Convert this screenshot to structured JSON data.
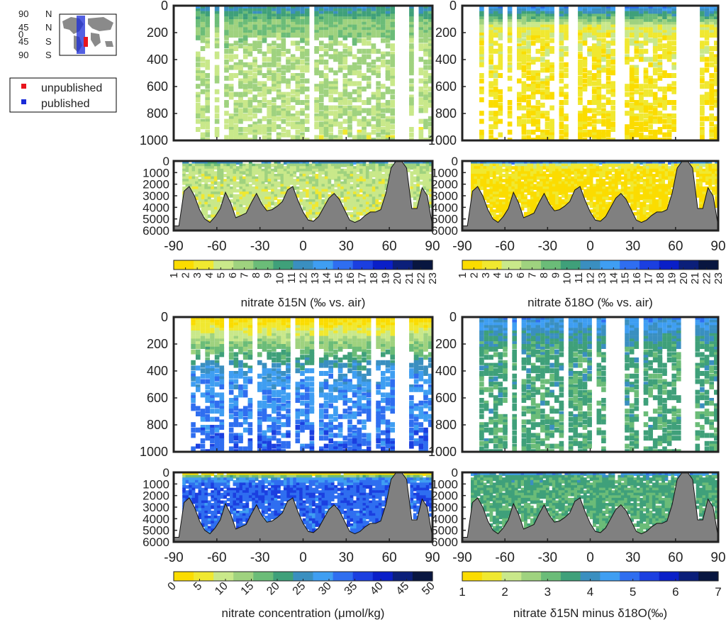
{
  "legend": {
    "items": [
      {
        "label": "unpublished",
        "color": "#e8141c"
      },
      {
        "label": "published",
        "color": "#1a2bd8"
      }
    ]
  },
  "minimap": {
    "lat_labels": [
      "90",
      "45",
      "0",
      "45",
      "90"
    ],
    "hemisphere_labels": [
      "N",
      "N",
      "S",
      "S"
    ]
  },
  "colormap": [
    "#fbdc00",
    "#f0e830",
    "#c9e88a",
    "#9fd27f",
    "#6bbc78",
    "#3fa07a",
    "#3a8fc0",
    "#3f9ef2",
    "#2f6ef0",
    "#1b3fe0",
    "#0a1fc8",
    "#0b1f7a",
    "#081640"
  ],
  "bathymetry": [
    5600,
    5600,
    2600,
    2200,
    3000,
    4200,
    5000,
    5300,
    4800,
    4100,
    2700,
    3600,
    4900,
    4700,
    4500,
    3600,
    2800,
    3700,
    4300,
    4200,
    3900,
    3500,
    2500,
    2200,
    3400,
    4400,
    5100,
    5200,
    4800,
    4000,
    3200,
    2800,
    3300,
    4200,
    5100,
    5300,
    5100,
    4700,
    4400,
    4400,
    4200,
    2800,
    600,
    0,
    0,
    600,
    4100,
    4100,
    2300,
    3000,
    5600
  ],
  "chart_data": [
    {
      "type": "heatmap",
      "id": "a",
      "xlabel": "",
      "cbar_label": "nitrate δ15N (‰ vs. air)",
      "x_ticks": [
        -90,
        -60,
        -30,
        0,
        30,
        60,
        90
      ],
      "xlim": [
        -90,
        90
      ],
      "upper": {
        "ylim": [
          1000,
          0
        ],
        "yticks": [
          0,
          200,
          400,
          600,
          800,
          1000
        ]
      },
      "lower": {
        "ylim": [
          6000,
          0
        ],
        "yticks": [
          0,
          1000,
          2000,
          3000,
          4000,
          5000,
          6000
        ]
      },
      "colorbar": {
        "range": [
          1,
          23
        ],
        "ticks": [
          1,
          2,
          3,
          4,
          5,
          6,
          7,
          8,
          9,
          10,
          11,
          12,
          13,
          14,
          15,
          16,
          17,
          18,
          19,
          20,
          21,
          22,
          23
        ],
        "orientation": "vertical-labels"
      },
      "profile": [
        {
          "depth": 0,
          "value": 12
        },
        {
          "depth": 100,
          "value": 8
        },
        {
          "depth": 300,
          "value": 6.5
        },
        {
          "depth": 1000,
          "value": 5.5
        },
        {
          "depth": 4000,
          "value": 5
        }
      ]
    },
    {
      "type": "heatmap",
      "id": "b",
      "xlabel": "",
      "cbar_label": "nitrate δ18O (‰ vs. air)",
      "x_ticks": [
        -90,
        -60,
        -30,
        0,
        30,
        60,
        90
      ],
      "xlim": [
        -90,
        90
      ],
      "upper": {
        "ylim": [
          1000,
          0
        ],
        "yticks": [
          0,
          200,
          400,
          600,
          800,
          1000
        ]
      },
      "lower": {
        "ylim": [
          6000,
          0
        ],
        "yticks": [
          0,
          1000,
          2000,
          3000,
          4000,
          5000,
          6000
        ]
      },
      "colorbar": {
        "range": [
          1,
          23
        ],
        "ticks": [
          1,
          2,
          3,
          4,
          5,
          6,
          7,
          8,
          9,
          10,
          11,
          12,
          13,
          14,
          15,
          16,
          17,
          18,
          19,
          20,
          21,
          22,
          23
        ],
        "orientation": "vertical-labels"
      },
      "profile": [
        {
          "depth": 0,
          "value": 14
        },
        {
          "depth": 150,
          "value": 4
        },
        {
          "depth": 1000,
          "value": 2.2
        },
        {
          "depth": 4000,
          "value": 2
        }
      ]
    },
    {
      "type": "heatmap",
      "id": "c",
      "xlabel": "",
      "cbar_label": "nitrate concentration (μmol/kg)",
      "x_ticks": [
        -90,
        -60,
        -30,
        0,
        30,
        60,
        90
      ],
      "xlim": [
        -90,
        90
      ],
      "upper": {
        "ylim": [
          1000,
          0
        ],
        "yticks": [
          0,
          200,
          400,
          600,
          800,
          1000
        ]
      },
      "lower": {
        "ylim": [
          6000,
          0
        ],
        "yticks": [
          0,
          1000,
          2000,
          3000,
          4000,
          5000,
          6000
        ]
      },
      "colorbar": {
        "range": [
          0,
          50
        ],
        "ticks": [
          0,
          5,
          10,
          15,
          20,
          25,
          30,
          35,
          40,
          45,
          50
        ],
        "orientation": "rotated-labels"
      },
      "profile": [
        {
          "depth": 0,
          "value": 1
        },
        {
          "depth": 150,
          "value": 12
        },
        {
          "depth": 400,
          "value": 28
        },
        {
          "depth": 1000,
          "value": 34
        },
        {
          "depth": 4000,
          "value": 33
        }
      ]
    },
    {
      "type": "heatmap",
      "id": "d",
      "xlabel": "",
      "cbar_label": "nitrate δ15N minus δ18O(‰)",
      "x_ticks": [
        -90,
        -60,
        -30,
        0,
        30,
        60,
        90
      ],
      "xlim": [
        -90,
        90
      ],
      "upper": {
        "ylim": [
          1000,
          0
        ],
        "yticks": [
          0,
          200,
          400,
          600,
          800,
          1000
        ]
      },
      "lower": {
        "ylim": [
          6000,
          0
        ],
        "yticks": [
          0,
          1000,
          2000,
          3000,
          4000,
          5000,
          6000
        ]
      },
      "colorbar": {
        "range": [
          1,
          7
        ],
        "ticks": [
          1,
          2,
          3,
          4,
          5,
          6,
          7
        ],
        "orientation": "horizontal-labels"
      },
      "profile": [
        {
          "depth": 0,
          "value": 4.5
        },
        {
          "depth": 200,
          "value": 3.5
        },
        {
          "depth": 1000,
          "value": 3.4
        },
        {
          "depth": 4000,
          "value": 3.3
        }
      ]
    }
  ]
}
